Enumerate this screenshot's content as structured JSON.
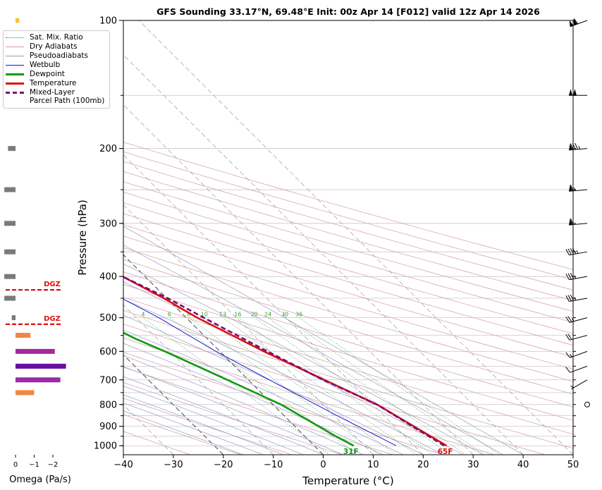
{
  "chart_data": {
    "type": "line",
    "title": "GFS Sounding 33.17°N, 69.48°E Init: 00z Apr 14 [F012] valid 12z Apr 14 2026",
    "xlabel": "Temperature (°C)",
    "ylabel": "Pressure (hPa)",
    "xlim": [
      -40,
      50
    ],
    "ylim": [
      1050,
      100
    ],
    "log_y": true,
    "skew": true,
    "grid": true,
    "x_ticks": [
      -40,
      -30,
      -20,
      -10,
      0,
      10,
      20,
      30,
      40,
      50
    ],
    "y_ticks": [
      100,
      200,
      300,
      400,
      500,
      600,
      700,
      800,
      900,
      1000
    ],
    "legend_position": "top-left",
    "series": [
      {
        "name": "Temperature",
        "color": "#dd1111",
        "points": [
          [
            1000,
            26.5
          ],
          [
            800,
            20.8
          ],
          [
            700,
            15.2
          ],
          [
            600,
            8.8
          ],
          [
            500,
            2.2
          ],
          [
            450,
            -0.6
          ],
          [
            400,
            -4.5
          ],
          [
            350,
            -9.4
          ],
          [
            300,
            -14.0
          ],
          [
            250,
            -20.3
          ],
          [
            200,
            -27.7
          ],
          [
            150,
            -31.9
          ],
          [
            100,
            -42.0
          ]
        ]
      },
      {
        "name": "Dewpoint",
        "color": "#119911",
        "points": [
          [
            1000,
            7.9
          ],
          [
            950,
            6.2
          ],
          [
            800,
            1.6
          ],
          [
            700,
            -4.2
          ],
          [
            600,
            -11.0
          ],
          [
            560,
            -14.4
          ],
          [
            500,
            -18.5
          ],
          [
            475,
            -27.3
          ],
          [
            450,
            -44.0
          ],
          [
            400,
            -44.5
          ],
          [
            350,
            -44.0
          ],
          [
            300,
            -48.5
          ],
          [
            250,
            -38.0
          ],
          [
            200,
            -44.5
          ],
          [
            150,
            -55.0
          ],
          [
            100,
            -68.0
          ]
        ]
      },
      {
        "name": "Wetbulb",
        "color": "#1a1ad0",
        "points": [
          [
            1000,
            16.4
          ],
          [
            950,
            14.6
          ],
          [
            850,
            10.6
          ],
          [
            700,
            4.2
          ],
          [
            600,
            -0.8
          ],
          [
            500,
            -5.5
          ],
          [
            450,
            -9.0
          ],
          [
            400,
            -14.3
          ],
          [
            300,
            -25.7
          ],
          [
            250,
            -29.0
          ]
        ]
      },
      {
        "name": "Mixed-Layer\nParcel Path (100mb)",
        "color": "#7a0c7a",
        "points": [
          [
            1000,
            26.0
          ],
          [
            800,
            20.8
          ],
          [
            700,
            15.0
          ],
          [
            600,
            9.5
          ],
          [
            500,
            3.5
          ],
          [
            450,
            0.2
          ],
          [
            400,
            -4.5
          ],
          [
            350,
            -10.0
          ],
          [
            300,
            -17.5
          ],
          [
            250,
            -28.0
          ],
          [
            200,
            -43.0
          ],
          [
            150,
            -63.0
          ],
          [
            100,
            -89.0
          ]
        ]
      }
    ],
    "reference_lines": [
      "Sat. Mix. Ratio",
      "Dry Adiabats",
      "Pseudoadiabats"
    ],
    "mixing_ratio_labels": [
      "4",
      "6",
      "8",
      "10",
      "13",
      "16",
      "20",
      "24",
      "30",
      "36"
    ],
    "surface_labels": {
      "dewpoint": "31F",
      "temperature": "65F"
    },
    "omega": {
      "xlabel": "Omega (Pa/s)",
      "x_ticks": [
        "0",
        "−1",
        "−2"
      ],
      "dgz_label": "DGZ",
      "dgz_levels": [
        430,
        518
      ],
      "bars": [
        {
          "p": 100,
          "v": -0.2,
          "color": "#f5c542"
        },
        {
          "p": 200,
          "v": 0.4,
          "color": "#7a7a7a"
        },
        {
          "p": 250,
          "v": 0.6,
          "color": "#7a7a7a"
        },
        {
          "p": 300,
          "v": 0.6,
          "color": "#7a7a7a"
        },
        {
          "p": 350,
          "v": 0.6,
          "color": "#7a7a7a"
        },
        {
          "p": 400,
          "v": 0.6,
          "color": "#7a7a7a"
        },
        {
          "p": 450,
          "v": 0.6,
          "color": "#7a7a7a"
        },
        {
          "p": 500,
          "v": 0.2,
          "color": "#7a7a7a"
        },
        {
          "p": 550,
          "v": -0.8,
          "color": "#ee8844"
        },
        {
          "p": 600,
          "v": -2.1,
          "color": "#a42a9c"
        },
        {
          "p": 650,
          "v": -2.7,
          "color": "#6a0ea0"
        },
        {
          "p": 700,
          "v": -2.4,
          "color": "#9a2aa8"
        },
        {
          "p": 750,
          "v": -1.0,
          "color": "#ee8844"
        }
      ]
    },
    "wind_barbs": [
      {
        "p": 100,
        "spd": 110,
        "dir": 250
      },
      {
        "p": 150,
        "spd": 100,
        "dir": 270
      },
      {
        "p": 200,
        "spd": 85,
        "dir": 265
      },
      {
        "p": 250,
        "spd": 65,
        "dir": 265
      },
      {
        "p": 300,
        "spd": 60,
        "dir": 265
      },
      {
        "p": 350,
        "spd": 45,
        "dir": 260
      },
      {
        "p": 400,
        "spd": 35,
        "dir": 260
      },
      {
        "p": 450,
        "spd": 35,
        "dir": 260
      },
      {
        "p": 500,
        "spd": 25,
        "dir": 255
      },
      {
        "p": 550,
        "spd": 20,
        "dir": 255
      },
      {
        "p": 600,
        "spd": 15,
        "dir": 250
      },
      {
        "p": 650,
        "spd": 10,
        "dir": 250
      },
      {
        "p": 700,
        "spd": 5,
        "dir": 240
      },
      {
        "p": 800,
        "spd": 0,
        "dir": 0
      }
    ]
  },
  "legend": {
    "items": [
      {
        "label": "Sat. Mix. Ratio",
        "color": "#2e8b2e",
        "style": "dotted",
        "width": 1
      },
      {
        "label": "Dry Adiabats",
        "color": "#d29a9a",
        "style": "solid",
        "width": 1
      },
      {
        "label": "Pseudoadiabats",
        "color": "#9a9ac8",
        "style": "solid",
        "width": 1
      },
      {
        "label": "Wetbulb",
        "color": "#1a1ad0",
        "style": "solid",
        "width": 1
      },
      {
        "label": "Dewpoint",
        "color": "#119911",
        "style": "solid",
        "width": 3
      },
      {
        "label": "Temperature",
        "color": "#dd1111",
        "style": "solid",
        "width": 3
      },
      {
        "label": "Mixed-Layer\nParcel Path (100mb)",
        "color": "#7a0c7a",
        "style": "dashed",
        "width": 3
      }
    ]
  }
}
